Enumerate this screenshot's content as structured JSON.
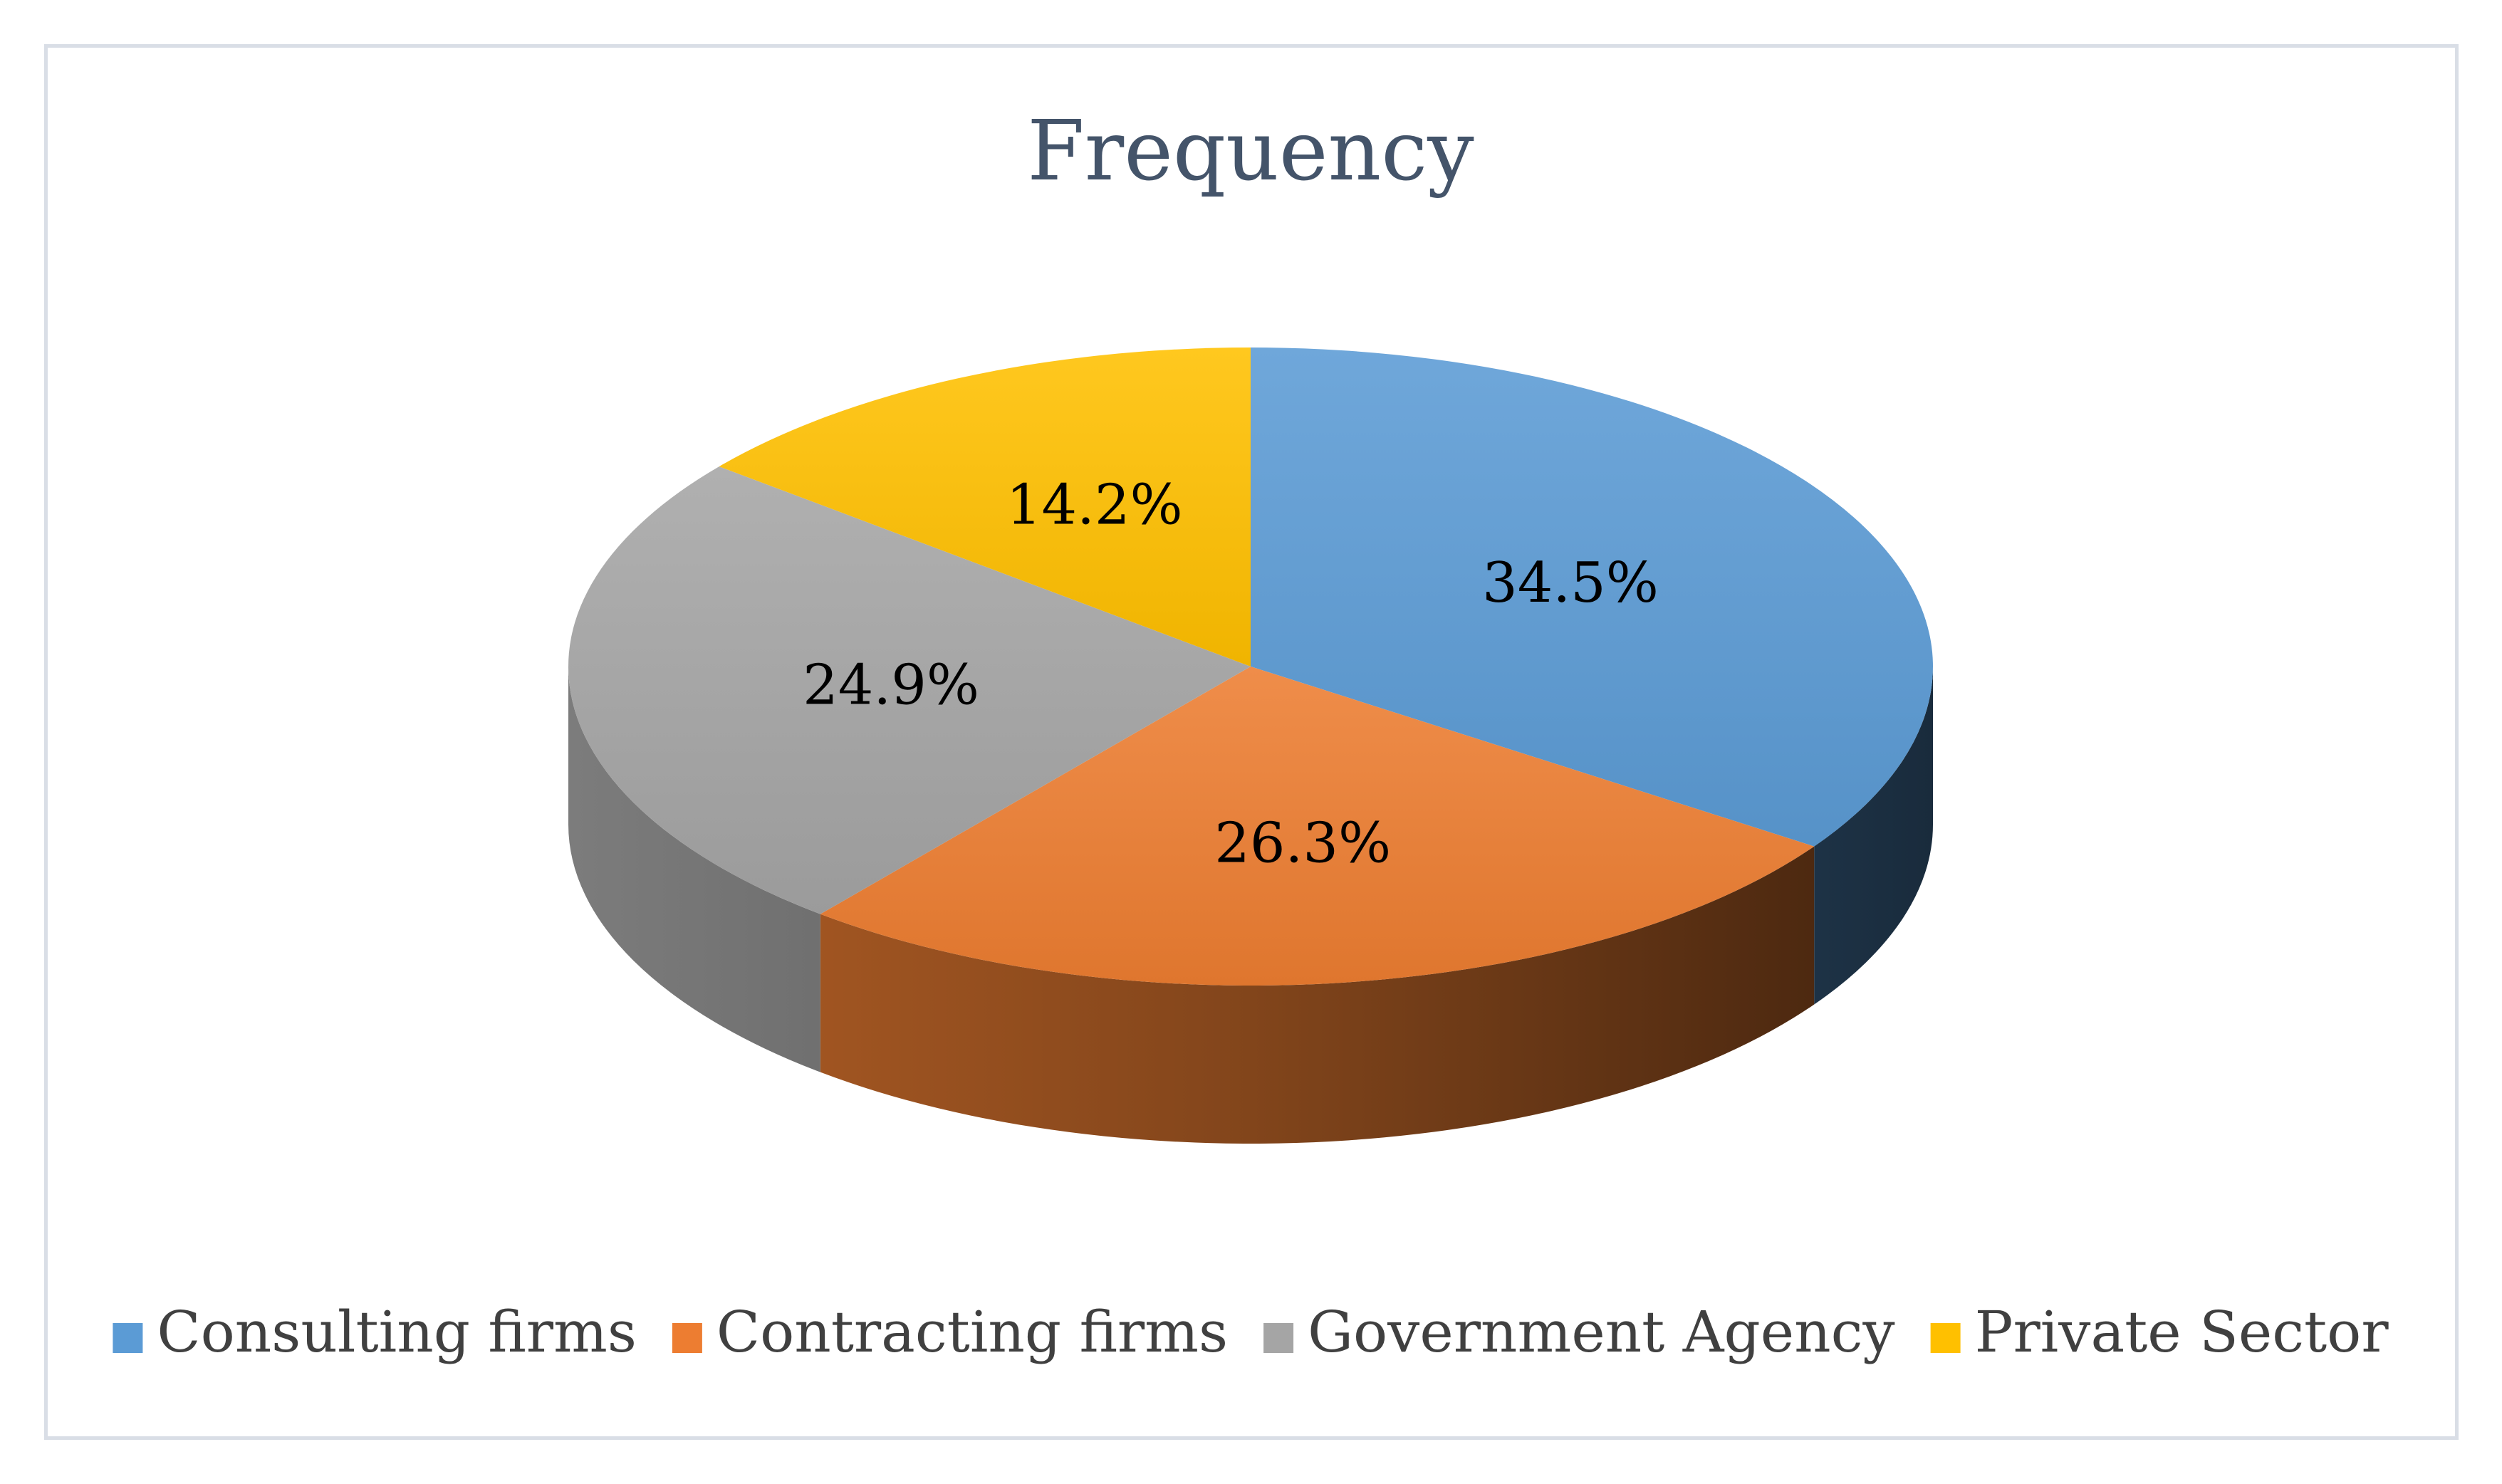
{
  "chart_data": {
    "type": "pie",
    "title": "Frequency",
    "categories": [
      "Consulting firms",
      "Contracting firms",
      "Government Agency",
      "Private Sector"
    ],
    "values": [
      34.5,
      26.3,
      24.9,
      14.2
    ],
    "data_labels": [
      "34.5%",
      "26.3%",
      "24.9%",
      "14.2%"
    ],
    "colors": [
      "#5b9bd5",
      "#ed7d31",
      "#a5a5a5",
      "#ffc000"
    ],
    "style": "3d",
    "legend_position": "bottom"
  }
}
